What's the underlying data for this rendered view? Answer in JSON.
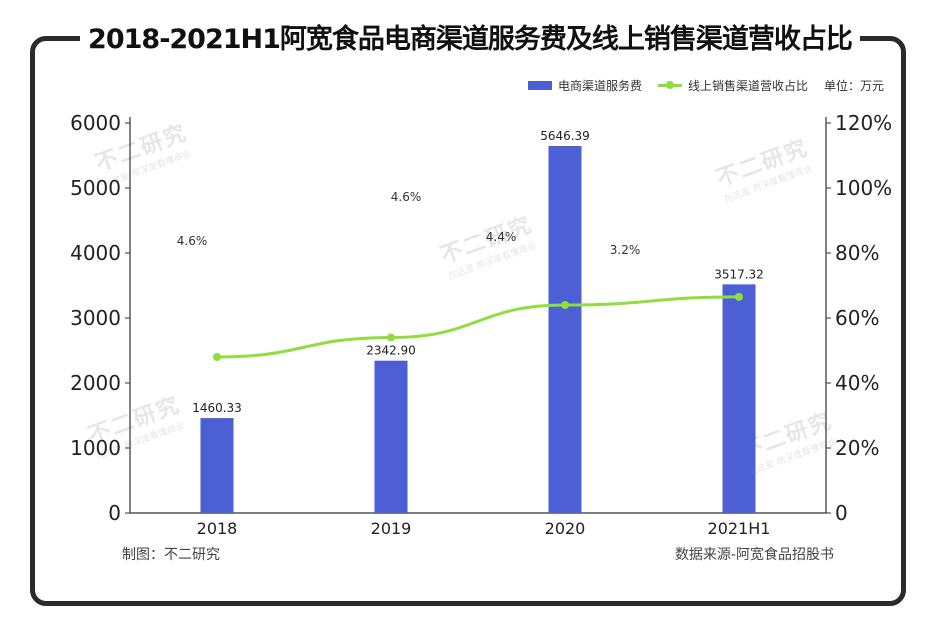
{
  "watermark": {
    "name": "不二研究",
    "tagline": "在这里 用深度看懂商业"
  },
  "chart_data": {
    "type": "bar+line",
    "title": "2018-2021H1阿宽食品电商渠道服务费及线上销售渠道营收占比",
    "unit_label": "单位：万元",
    "categories": [
      "2018",
      "2019",
      "2020",
      "2021H1"
    ],
    "series": [
      {
        "name": "电商渠道服务费",
        "type": "bar",
        "axis": "left",
        "color": "#4d5fd5",
        "values": [
          1460.33,
          2342.9,
          5646.39,
          3517.32
        ],
        "labels": [
          "1460.33",
          "2342.90",
          "5646.39",
          "3517.32"
        ]
      },
      {
        "name": "线上销售渠道营收占比",
        "type": "line",
        "axis": "right",
        "color": "#8fde3c",
        "values": [
          48,
          54,
          64,
          66.5
        ]
      }
    ],
    "annotations": [
      "4.6%",
      "4.6%",
      "4.4%",
      "3.2%"
    ],
    "y_left": {
      "min": 0,
      "max": 6000,
      "ticks": [
        "0",
        "1000",
        "2000",
        "3000",
        "4000",
        "5000",
        "6000"
      ]
    },
    "y_right": {
      "min": 0,
      "max": 120,
      "ticks": [
        "0",
        "20%",
        "40%",
        "60%",
        "80%",
        "100%",
        "120%"
      ]
    }
  },
  "footer": {
    "credit": "制图：不二研究",
    "source": "数据来源-阿宽食品招股书"
  }
}
